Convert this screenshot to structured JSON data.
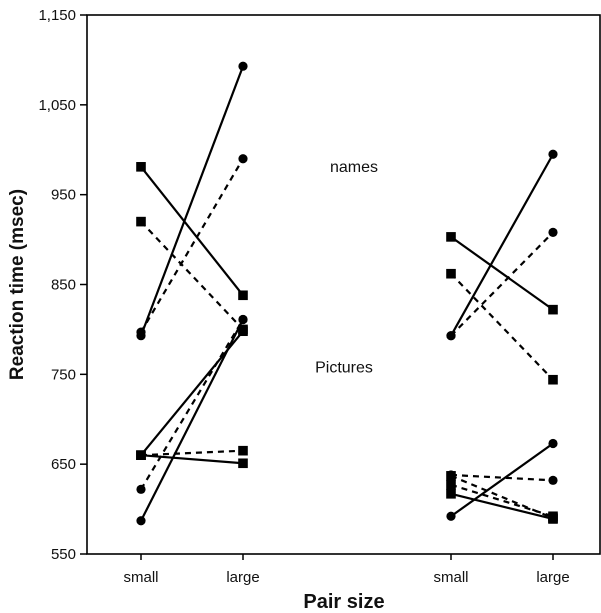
{
  "chart_data": {
    "type": "line",
    "xlabel": "Pair size",
    "ylabel": "Reaction time (msec)",
    "ylim": [
      550,
      1150
    ],
    "yticks": [
      550,
      650,
      750,
      850,
      950,
      1050,
      1150
    ],
    "ytick_labels": [
      "550",
      "650",
      "750",
      "850",
      "950",
      "1,050",
      "1,150"
    ],
    "grid": false,
    "x_groups": [
      {
        "categories": [
          "small",
          "large"
        ]
      },
      {
        "categories": [
          "small",
          "large"
        ]
      }
    ],
    "annotations": [
      {
        "text": "names",
        "group": 0,
        "y": 975
      },
      {
        "text": "Pictures",
        "group": 0,
        "y": 752
      }
    ],
    "series": [
      {
        "group": 0,
        "marker": "circle",
        "dash": "solid",
        "values": [
          793,
          1093
        ]
      },
      {
        "group": 0,
        "marker": "square",
        "dash": "solid",
        "values": [
          981,
          838
        ]
      },
      {
        "group": 0,
        "marker": "circle",
        "dash": "dashed",
        "values": [
          797,
          990
        ]
      },
      {
        "group": 0,
        "marker": "square",
        "dash": "dashed",
        "values": [
          920,
          800
        ]
      },
      {
        "group": 0,
        "marker": "circle",
        "dash": "solid",
        "values": [
          587,
          811
        ]
      },
      {
        "group": 0,
        "marker": "square",
        "dash": "solid",
        "values": [
          660,
          651
        ]
      },
      {
        "group": 0,
        "marker": "circle",
        "dash": "dashed",
        "values": [
          622,
          811
        ]
      },
      {
        "group": 0,
        "marker": "square",
        "dash": "dashed",
        "values": [
          660,
          665
        ]
      },
      {
        "group": 0,
        "marker": "square",
        "dash": "solid",
        "values": [
          660,
          798
        ]
      },
      {
        "group": 1,
        "marker": "circle",
        "dash": "solid",
        "values": [
          793,
          995
        ]
      },
      {
        "group": 1,
        "marker": "square",
        "dash": "solid",
        "values": [
          903,
          822
        ]
      },
      {
        "group": 1,
        "marker": "circle",
        "dash": "dashed",
        "values": [
          793,
          908
        ]
      },
      {
        "group": 1,
        "marker": "square",
        "dash": "dashed",
        "values": [
          862,
          744
        ]
      },
      {
        "group": 1,
        "marker": "circle",
        "dash": "solid",
        "values": [
          592,
          673
        ]
      },
      {
        "group": 1,
        "marker": "square",
        "dash": "solid",
        "values": [
          617,
          589
        ]
      },
      {
        "group": 1,
        "marker": "circle",
        "dash": "dashed",
        "values": [
          638,
          632
        ]
      },
      {
        "group": 1,
        "marker": "square",
        "dash": "dashed",
        "values": [
          627,
          592
        ]
      },
      {
        "group": 1,
        "marker": "square",
        "dash": "dashed",
        "values": [
          637,
          590
        ]
      }
    ]
  }
}
